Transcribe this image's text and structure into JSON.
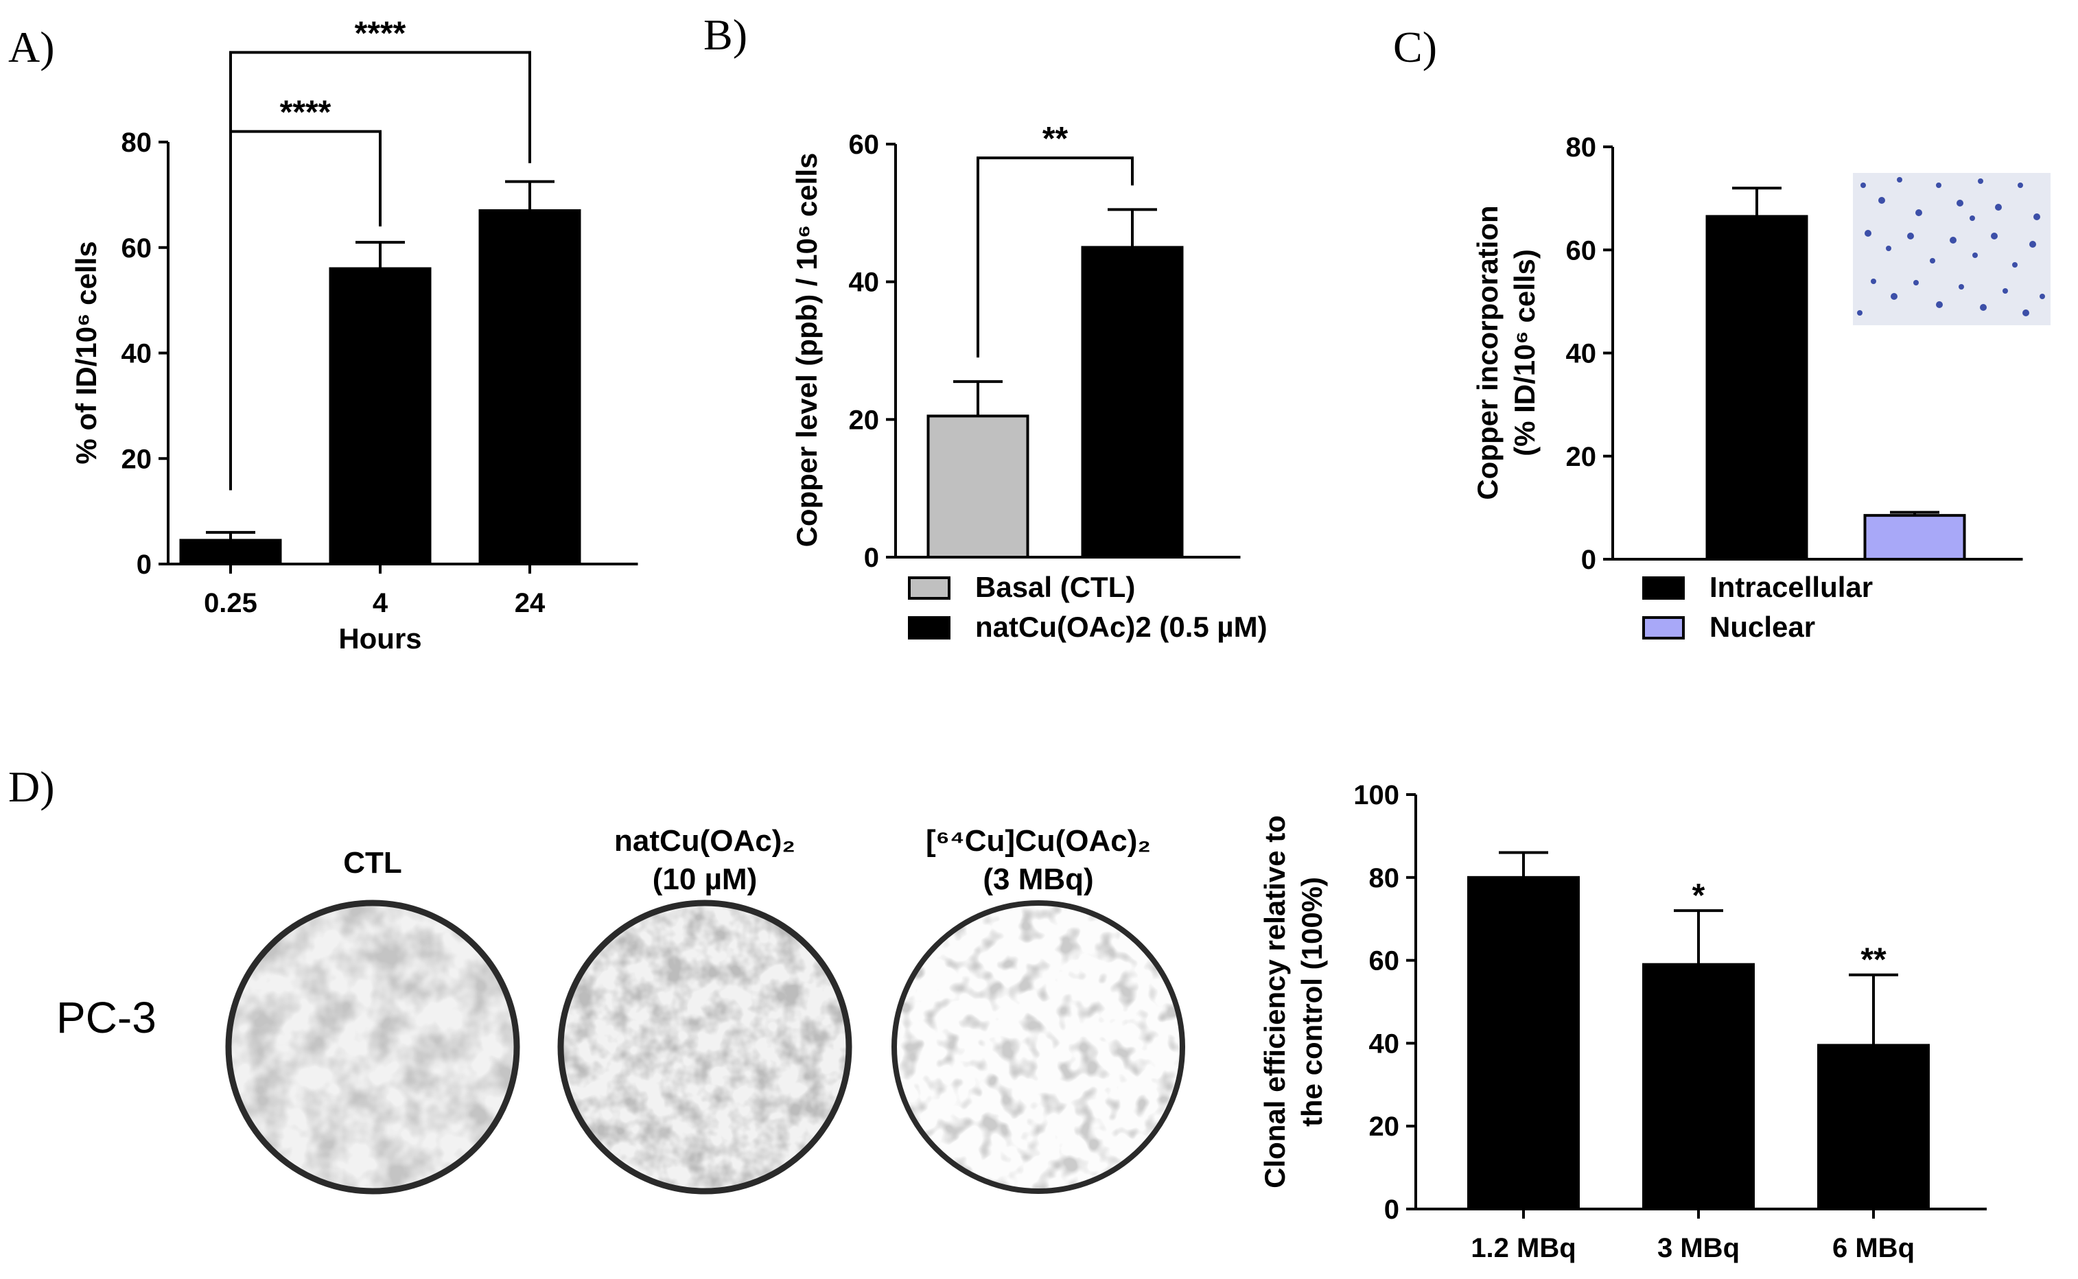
{
  "panels": {
    "A": "A)",
    "B": "B)",
    "C": "C)",
    "D": "D)"
  },
  "chart_data": [
    {
      "id": "A",
      "type": "bar",
      "ylabel": "% of ID/10⁶ cells",
      "xlabel": "Hours",
      "categories": [
        "0.25",
        "4",
        "24"
      ],
      "values": [
        4.5,
        56,
        67
      ],
      "errors": [
        1.5,
        5,
        5.5
      ],
      "colors": [
        "#000000",
        "#000000",
        "#000000"
      ],
      "ylim": [
        0,
        80
      ],
      "yticks": [
        "0",
        "20",
        "40",
        "60",
        "80"
      ],
      "brackets": [
        {
          "from": 0,
          "to": 1,
          "label": "****",
          "bottom_values": [
            14,
            64
          ],
          "top_value": 82
        },
        {
          "from": 0,
          "to": 2,
          "label": "****",
          "bottom_values": [
            14,
            76
          ],
          "top_value": 97
        }
      ]
    },
    {
      "id": "B",
      "type": "bar",
      "ylabel": "Copper level (ppb) / 10⁶ cells",
      "xlabel": "",
      "categories": [
        "Basal (CTL)",
        "natCu(OAc)2 (0.5 µM)"
      ],
      "values": [
        20.5,
        45
      ],
      "errors": [
        5,
        5.5
      ],
      "colors": [
        "#c0c0c0",
        "#000000"
      ],
      "ylim": [
        0,
        60
      ],
      "yticks": [
        "0",
        "20",
        "40",
        "60"
      ],
      "legend": [
        {
          "label": "Basal (CTL)",
          "color": "#c0c0c0"
        },
        {
          "label": "natCu(OAc)2 (0.5 µM)",
          "color": "#000000"
        }
      ],
      "brackets": [
        {
          "from": 0,
          "to": 1,
          "label": "**",
          "bottom_values": [
            29,
            54
          ],
          "top_value": 58
        }
      ]
    },
    {
      "id": "C",
      "type": "bar",
      "ylabel": "Copper incorporation",
      "ylabel2": "(% ID/10⁶ cells)",
      "xlabel": "",
      "categories": [
        "Intracellular",
        "Nuclear"
      ],
      "values": [
        66.5,
        8.5
      ],
      "errors": [
        5.5,
        0.6
      ],
      "colors": [
        "#000000",
        "#a8a8f8"
      ],
      "ylim": [
        0,
        80
      ],
      "yticks": [
        "0",
        "20",
        "40",
        "60",
        "80"
      ],
      "legend": [
        {
          "label": "Intracellular",
          "color": "#000000"
        },
        {
          "label": "Nuclear",
          "color": "#a8a8f8"
        }
      ]
    },
    {
      "id": "D",
      "type": "bar",
      "ylabel": "Clonal efficiency relative to",
      "ylabel2": "the control (100%)",
      "xlabel": "",
      "categories": [
        "1.2 MBq",
        "3 MBq",
        "6 MBq"
      ],
      "values": [
        80,
        59,
        39.5
      ],
      "errors": [
        6,
        13,
        17
      ],
      "colors": [
        "#000000",
        "#000000",
        "#000000"
      ],
      "ylim": [
        0,
        100
      ],
      "yticks": [
        "0",
        "20",
        "40",
        "60",
        "80",
        "100"
      ],
      "sig_labels": [
        "",
        "*",
        "**"
      ]
    }
  ],
  "plates": {
    "row_label": "PC-3",
    "items": [
      {
        "title1": "CTL",
        "title2": ""
      },
      {
        "title1": "natCu(OAc)₂",
        "title2": "(10 µM)"
      },
      {
        "title1": "[⁶⁴Cu]Cu(OAc)₂",
        "title2": "(3 MBq)"
      }
    ]
  }
}
